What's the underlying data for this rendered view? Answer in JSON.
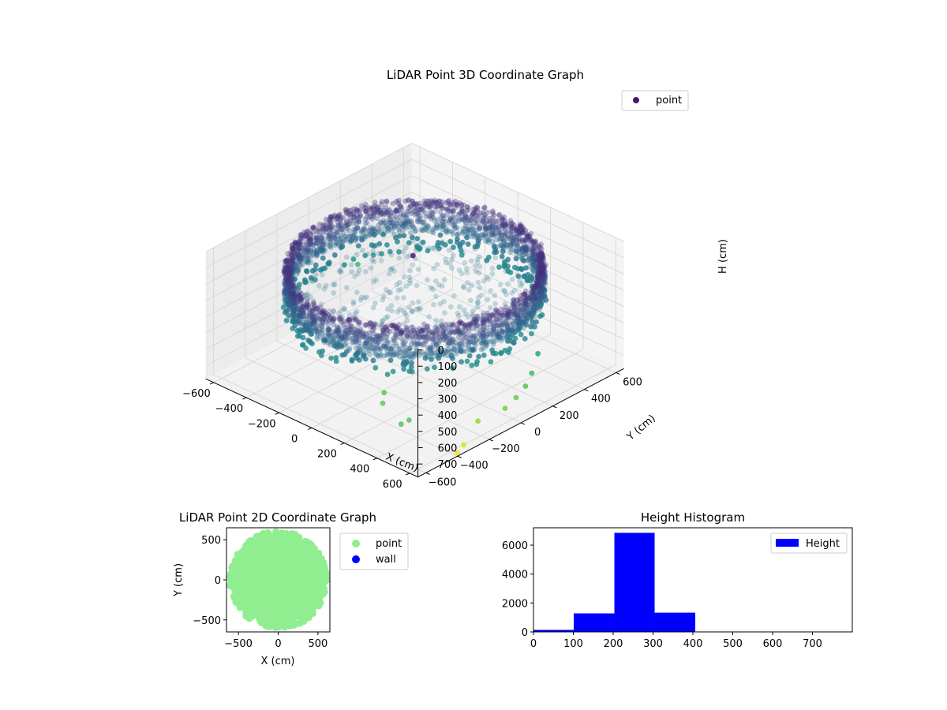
{
  "chart_data": [
    {
      "type": "scatter",
      "projection": "3d",
      "title": "LiDAR Point 3D Coordinate Graph",
      "xlabel": "X (cm)",
      "ylabel": "Y (cm)",
      "zlabel": "H (cm)",
      "xlim": [
        -650,
        650
      ],
      "ylim": [
        -650,
        650
      ],
      "zlim": [
        0,
        780
      ],
      "z_inverted": true,
      "xticks": [
        -600,
        -400,
        -200,
        0,
        200,
        400,
        600
      ],
      "yticks": [
        -600,
        -400,
        -200,
        0,
        200,
        400,
        600
      ],
      "zticks": [
        0,
        100,
        200,
        300,
        400,
        500,
        600,
        700
      ],
      "grid": true,
      "colormap": "viridis",
      "legend": {
        "entries": [
          "point"
        ],
        "placement": "top-right"
      },
      "series": [
        {
          "name": "point",
          "description_of_distribution": "circular wall of points radius ~560 cm, heights ~100-300 cm; lower ring at heights ~380-400 cm; scattered outliers",
          "wall_radius": 560,
          "wall_height_range": [
            100,
            300
          ],
          "floor_height_range": [
            300,
            400
          ],
          "outliers": [
            {
              "x": -640,
              "y": 300,
              "h": 560
            },
            {
              "x": -600,
              "y": 420,
              "h": 420
            },
            {
              "x": -30,
              "y": 20,
              "h": 80
            },
            {
              "x": 200,
              "y": -400,
              "h": 600
            },
            {
              "x": 250,
              "y": -460,
              "h": 610
            },
            {
              "x": 450,
              "y": -500,
              "h": 600
            },
            {
              "x": 460,
              "y": -560,
              "h": 590
            },
            {
              "x": 560,
              "y": 200,
              "h": 500
            },
            {
              "x": 600,
              "y": 120,
              "h": 560
            },
            {
              "x": 620,
              "y": 60,
              "h": 600
            },
            {
              "x": 640,
              "y": -20,
              "h": 620
            },
            {
              "x": 650,
              "y": -100,
              "h": 640
            },
            {
              "x": 600,
              "y": -220,
              "h": 680
            },
            {
              "x": 620,
              "y": -330,
              "h": 760
            },
            {
              "x": 630,
              "y": -380,
              "h": 780
            }
          ]
        }
      ]
    },
    {
      "type": "scatter",
      "title": "LiDAR Point 2D Coordinate Graph",
      "xlabel": "X (cm)",
      "ylabel": "Y (cm)",
      "xlim": [
        -650,
        650
      ],
      "ylim": [
        -650,
        650
      ],
      "xticks": [
        -500,
        0,
        500
      ],
      "yticks": [
        -500,
        0,
        500
      ],
      "legend": {
        "entries": [
          "point",
          "wall"
        ],
        "placement": "outside-right"
      },
      "series": [
        {
          "name": "point",
          "color": "#90ee90",
          "description_of_distribution": "filled disc radius ~580 cm"
        },
        {
          "name": "wall",
          "color": "#0000ff",
          "points": []
        }
      ]
    },
    {
      "type": "bar",
      "title": "Height Histogram",
      "xlim": [
        0,
        800
      ],
      "ylim": [
        0,
        7200
      ],
      "xticks": [
        0,
        100,
        200,
        300,
        400,
        500,
        600,
        700
      ],
      "yticks": [
        0,
        2000,
        4000,
        6000
      ],
      "bin_edges": [
        0,
        101,
        203,
        304,
        406,
        507,
        608,
        710,
        800
      ],
      "values": [
        140,
        1280,
        6850,
        1330,
        0,
        0,
        0,
        0
      ],
      "color": "#0000ff",
      "legend": {
        "entries": [
          "Height"
        ],
        "placement": "top-right"
      },
      "series": [
        {
          "name": "Height",
          "values": [
            140,
            1280,
            6850,
            1330,
            0,
            0,
            0,
            0
          ]
        }
      ]
    }
  ]
}
